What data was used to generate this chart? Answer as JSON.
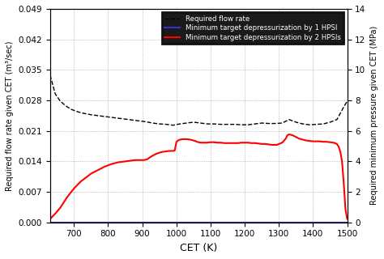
{
  "title": "",
  "xlabel": "CET (K)",
  "ylabel_left": "Required flow rate given CET (m³/sec)",
  "ylabel_right": "Required minimum pressure given CET (MPa)",
  "xlim": [
    630,
    1500
  ],
  "ylim_left": [
    0.0,
    0.049
  ],
  "ylim_right": [
    0,
    14
  ],
  "xticks": [
    700,
    800,
    900,
    1000,
    1100,
    1200,
    1300,
    1400,
    1500
  ],
  "yticks_left": [
    0.0,
    0.007,
    0.014,
    0.021,
    0.028,
    0.035,
    0.042,
    0.049
  ],
  "yticks_right": [
    0,
    2,
    4,
    6,
    8,
    10,
    12,
    14
  ],
  "legend_labels": [
    "Required flow rate",
    "Minimum target depressurization by 1 HPSI",
    "Minimum target depressurization by 2 HPSIs"
  ],
  "dashed_x": [
    630,
    645,
    660,
    675,
    690,
    710,
    730,
    750,
    770,
    790,
    810,
    830,
    850,
    870,
    890,
    910,
    930,
    950,
    970,
    990,
    1010,
    1030,
    1050,
    1070,
    1090,
    1110,
    1130,
    1150,
    1170,
    1190,
    1210,
    1230,
    1250,
    1270,
    1290,
    1310,
    1330,
    1350,
    1370,
    1390,
    1410,
    1430,
    1450,
    1470,
    1490,
    1500
  ],
  "dashed_y": [
    0.0338,
    0.0295,
    0.0278,
    0.0268,
    0.026,
    0.0254,
    0.025,
    0.0247,
    0.0245,
    0.0243,
    0.0241,
    0.0239,
    0.0237,
    0.0235,
    0.0233,
    0.0231,
    0.0228,
    0.0226,
    0.0225,
    0.0223,
    0.0226,
    0.0228,
    0.023,
    0.0228,
    0.0226,
    0.0226,
    0.0225,
    0.0225,
    0.0225,
    0.0224,
    0.0224,
    0.0226,
    0.0228,
    0.0227,
    0.0227,
    0.0228,
    0.0236,
    0.023,
    0.0226,
    0.0224,
    0.0225,
    0.0226,
    0.023,
    0.0236,
    0.0265,
    0.0278
  ],
  "blue_x": [
    630,
    1500
  ],
  "blue_y": [
    0.0,
    0.0
  ],
  "red_x": [
    630,
    645,
    660,
    670,
    680,
    690,
    700,
    710,
    720,
    730,
    740,
    750,
    760,
    770,
    780,
    790,
    800,
    810,
    820,
    830,
    840,
    850,
    860,
    870,
    880,
    890,
    895,
    900,
    905,
    910,
    915,
    920,
    930,
    940,
    950,
    960,
    970,
    980,
    985,
    990,
    995,
    1000,
    1005,
    1010,
    1020,
    1030,
    1040,
    1050,
    1055,
    1060,
    1070,
    1080,
    1090,
    1100,
    1110,
    1120,
    1130,
    1140,
    1150,
    1160,
    1170,
    1180,
    1190,
    1200,
    1210,
    1220,
    1230,
    1240,
    1250,
    1260,
    1270,
    1280,
    1290,
    1295,
    1300,
    1310,
    1320,
    1325,
    1330,
    1340,
    1350,
    1360,
    1370,
    1380,
    1390,
    1400,
    1410,
    1420,
    1430,
    1440,
    1450,
    1460,
    1470,
    1475,
    1480,
    1485,
    1490,
    1495,
    1500
  ],
  "red_y": [
    0.0008,
    0.002,
    0.0034,
    0.0046,
    0.0058,
    0.0068,
    0.0078,
    0.0086,
    0.0094,
    0.01,
    0.0106,
    0.0112,
    0.0116,
    0.012,
    0.0124,
    0.0128,
    0.0131,
    0.0134,
    0.0136,
    0.0138,
    0.0139,
    0.014,
    0.0141,
    0.0142,
    0.0143,
    0.0143,
    0.0143,
    0.0143,
    0.0143,
    0.0144,
    0.0145,
    0.0148,
    0.0153,
    0.0157,
    0.016,
    0.0162,
    0.0163,
    0.0164,
    0.0164,
    0.0164,
    0.0165,
    0.0185,
    0.0188,
    0.019,
    0.0191,
    0.0191,
    0.019,
    0.0188,
    0.0187,
    0.0185,
    0.0183,
    0.0183,
    0.0183,
    0.0184,
    0.0184,
    0.0183,
    0.0183,
    0.0182,
    0.0182,
    0.0182,
    0.0182,
    0.0182,
    0.0183,
    0.0183,
    0.0183,
    0.0182,
    0.0182,
    0.0181,
    0.018,
    0.018,
    0.0179,
    0.0178,
    0.0178,
    0.0178,
    0.018,
    0.0183,
    0.0192,
    0.02,
    0.0202,
    0.02,
    0.0196,
    0.0192,
    0.019,
    0.0188,
    0.0187,
    0.0186,
    0.0186,
    0.0186,
    0.0185,
    0.0185,
    0.0184,
    0.0183,
    0.018,
    0.0174,
    0.0162,
    0.014,
    0.009,
    0.003,
    0.0008
  ],
  "grid_color": "#999999",
  "legend_facecolor": "#1a1a1a",
  "legend_edgecolor": "#111111",
  "legend_text_color": "white",
  "background_color": "white"
}
